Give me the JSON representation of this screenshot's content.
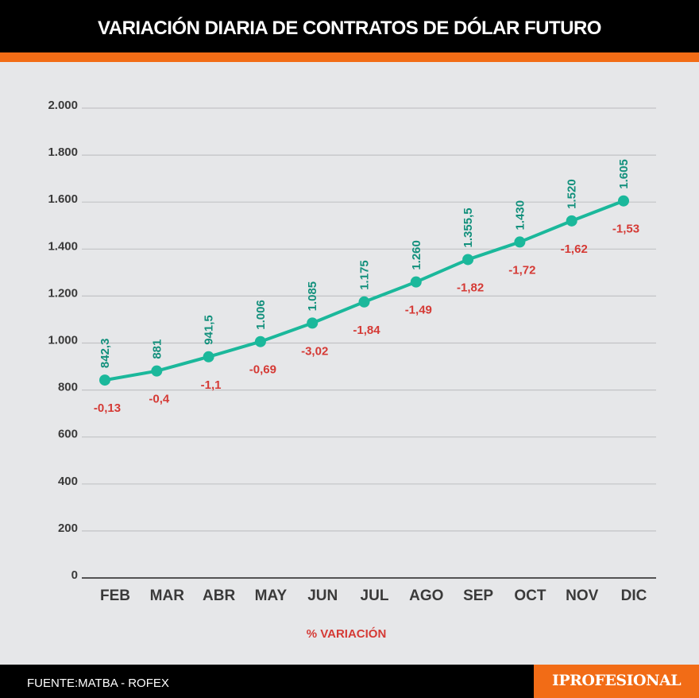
{
  "title": "VARIACIÓN DIARIA DE CONTRATOS DE DÓLAR FUTURO",
  "footer": {
    "source": "FUENTE:MATBA - ROFEX",
    "brand": "IPROFESIONAL"
  },
  "colors": {
    "line": "#1bb89b",
    "value_label": "#12907c",
    "variation_label": "#d53a35",
    "accent": "#f26c16",
    "background": "#e6e7e9"
  },
  "chart_data": {
    "type": "line",
    "title": "VARIACIÓN DIARIA DE CONTRATOS DE DÓLAR FUTURO",
    "xlabel": "",
    "ylabel": "",
    "ylim": [
      0,
      2000
    ],
    "yticks": [
      0,
      200,
      400,
      600,
      800,
      1000,
      1200,
      1400,
      1600,
      1800,
      2000
    ],
    "ytick_labels": [
      "0",
      "200",
      "400",
      "600",
      "800",
      "1.000",
      "1.200",
      "1.400",
      "1.600",
      "1.800",
      "2.000"
    ],
    "categories": [
      "FEB",
      "MAR",
      "ABR",
      "MAY",
      "JUN",
      "JUL",
      "AGO",
      "SEP",
      "OCT",
      "NOV",
      "DIC"
    ],
    "values": [
      842.3,
      881,
      941.5,
      1006,
      1085,
      1175,
      1260,
      1355.5,
      1430,
      1520,
      1605
    ],
    "value_labels": [
      "842,3",
      "881",
      "941,5",
      "1.006",
      "1.085",
      "1.175",
      "1.260",
      "1.355,5",
      "1.430",
      "1.520",
      "1.605"
    ],
    "variation_caption": "% VARIACIÓN",
    "variation_labels": [
      "-0,13",
      "-0,4",
      "-1,1",
      "-0,69",
      "-3,02",
      "-1,84",
      "-1,49",
      "-1,82",
      "-1,72",
      "-1,62",
      "-1,53"
    ],
    "grid": true,
    "legend": "none"
  }
}
